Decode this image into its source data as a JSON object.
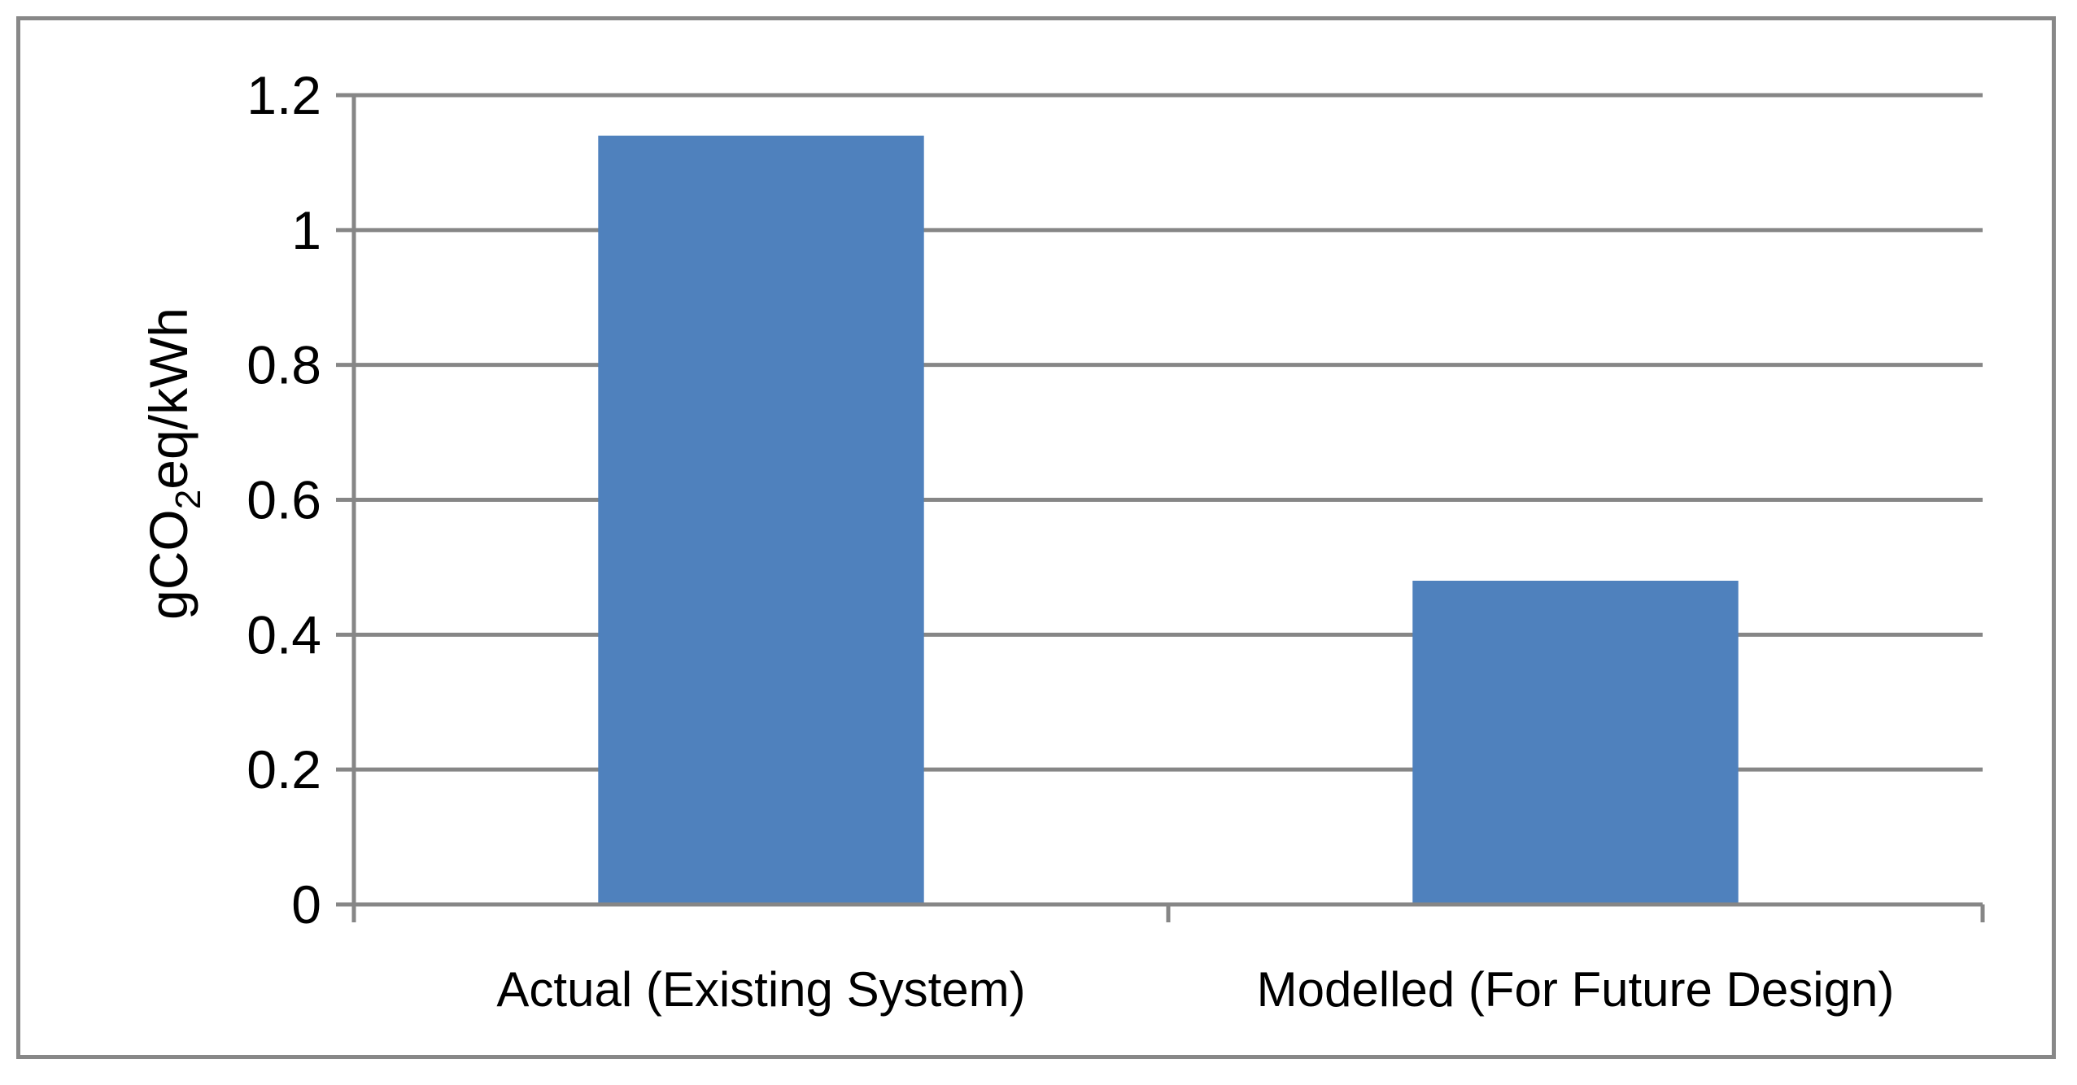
{
  "chart_data": {
    "type": "bar",
    "categories": [
      "Actual (Existing System)",
      "Modelled (For Future Design)"
    ],
    "values": [
      1.14,
      0.48
    ],
    "ylabel": {
      "prefix": "gCO",
      "subscript": "2",
      "suffix": "eq/kWh"
    },
    "ylim": [
      0,
      1.2
    ],
    "yticks": [
      "0",
      "0.2",
      "0.4",
      "0.6",
      "0.8",
      "1",
      "1.2"
    ],
    "grid": true,
    "legend": "none",
    "colors": {
      "bar": "#4f81bd",
      "grid": "#868686",
      "axis": "#868686",
      "frame": "#888888"
    }
  }
}
